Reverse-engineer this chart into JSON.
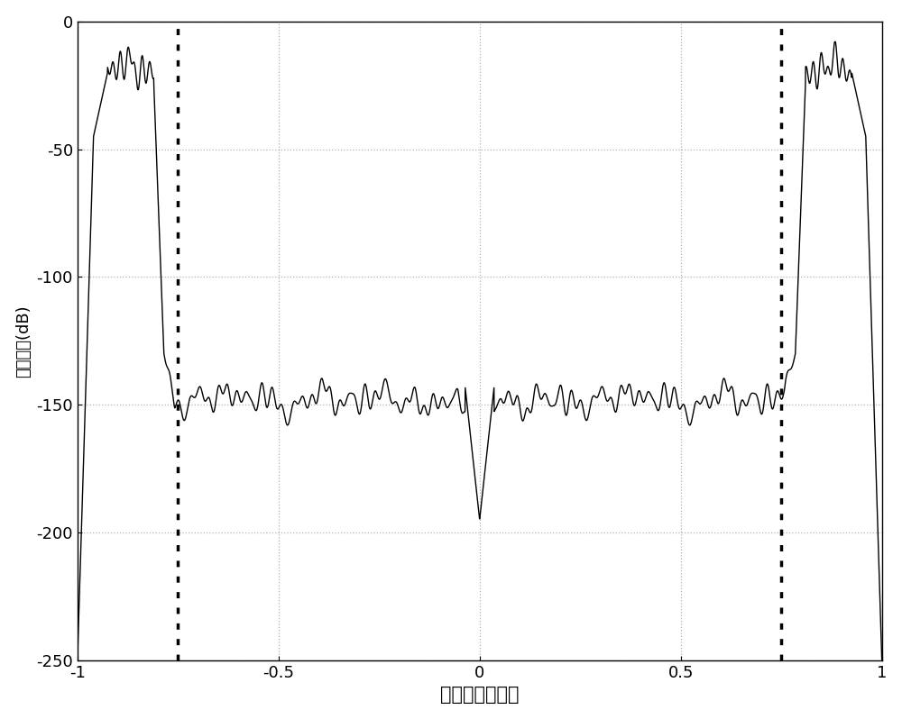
{
  "xlim": [
    -1.0,
    1.0
  ],
  "ylim": [
    -250,
    0
  ],
  "yticks": [
    0,
    -50,
    -100,
    -150,
    -200,
    -250
  ],
  "xticks": [
    -1.0,
    -0.5,
    0.0,
    0.5,
    1.0
  ],
  "xlabel": "标准化差动输入",
  "ylabel": "量化噪声(dB)",
  "vline1": -0.75,
  "vline2": 0.75,
  "line_color": "#000000",
  "background_color": "#ffffff",
  "grid_color": "#aaaaaa",
  "xlabel_fontsize": 15,
  "ylabel_fontsize": 13,
  "tick_fontsize": 13,
  "noise_floor": -148.0,
  "ripple_amp": 10.0,
  "notch_depth": -195.0
}
